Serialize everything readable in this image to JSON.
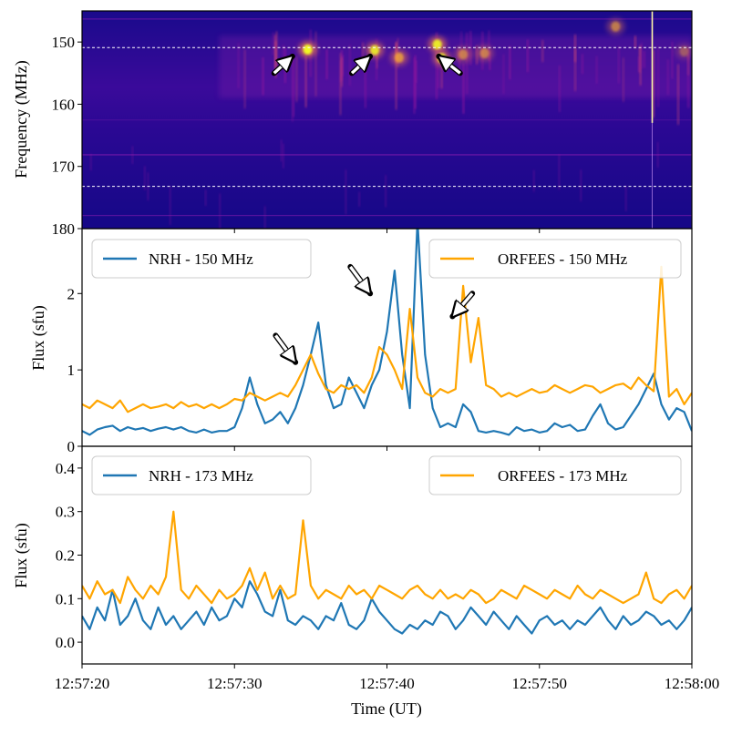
{
  "figure": {
    "xlabel": "Time (UT)",
    "x_tick_labels": [
      "12:57:20",
      "12:57:30",
      "12:57:40",
      "12:57:50",
      "12:58:00"
    ]
  },
  "chart_data": [
    {
      "type": "heatmap",
      "panel": "dynamic spectrum",
      "ylabel": "Frequency (MHz)",
      "y_tick_labels": [
        "150",
        "160",
        "170",
        "180"
      ],
      "x_range_s": [
        0,
        40
      ],
      "y_range": [
        145,
        180
      ],
      "y_inverted": true,
      "colormap": [
        "#0d0887",
        "#5c01a6",
        "#9c179e",
        "#cc4778",
        "#ed7953",
        "#fdb42f",
        "#f0f921"
      ],
      "guide_lines_mhz": [
        150.9,
        173.2
      ],
      "bright_features": [
        {
          "t": 14.8,
          "f": 151.2,
          "intensity": 1.0
        },
        {
          "t": 19.2,
          "f": 151.3,
          "intensity": 0.85
        },
        {
          "t": 20.8,
          "f": 152.5,
          "intensity": 0.7
        },
        {
          "t": 23.3,
          "f": 150.4,
          "intensity": 0.9
        },
        {
          "t": 23.6,
          "f": 152.6,
          "intensity": 0.85
        },
        {
          "t": 25.0,
          "f": 152.0,
          "intensity": 0.55
        },
        {
          "t": 26.4,
          "f": 151.8,
          "intensity": 0.55
        },
        {
          "t": 35.0,
          "f": 147.5,
          "intensity": 0.55
        },
        {
          "t": 39.5,
          "f": 151.5,
          "intensity": 0.35
        }
      ],
      "bright_line_t": 37.4,
      "arrows": [
        {
          "tip_t": 13.8,
          "tip_f": 152.3,
          "tail_t": 12.6,
          "tail_f": 155.0
        },
        {
          "tip_t": 18.9,
          "tip_f": 152.3,
          "tail_t": 17.7,
          "tail_f": 155.0
        },
        {
          "tip_t": 23.4,
          "tip_f": 152.3,
          "tail_t": 24.8,
          "tail_f": 155.0
        }
      ]
    },
    {
      "type": "line",
      "panel": "150 MHz light curves",
      "ylabel": "Flux (sfu)",
      "y_tick_labels": [
        "0",
        "1",
        "2"
      ],
      "ylim": [
        0,
        2.85
      ],
      "x_range_s": [
        0,
        40
      ],
      "series": [
        {
          "name": "NRH - 150 MHz",
          "color": "#1f77b4",
          "x": [
            0,
            0.5,
            1,
            1.5,
            2,
            2.5,
            3,
            3.5,
            4,
            4.5,
            5,
            5.5,
            6,
            6.5,
            7,
            7.5,
            8,
            8.5,
            9,
            9.5,
            10,
            10.5,
            11,
            11.5,
            12,
            12.5,
            13,
            13.5,
            14,
            14.5,
            15,
            15.5,
            16,
            16.5,
            17,
            17.5,
            18,
            18.5,
            19,
            19.5,
            20,
            20.5,
            21,
            21.5,
            22,
            22.5,
            23,
            23.5,
            24,
            24.5,
            25,
            25.5,
            26,
            26.5,
            27,
            27.5,
            28,
            28.5,
            29,
            29.5,
            30,
            30.5,
            31,
            31.5,
            32,
            32.5,
            33,
            33.5,
            34,
            34.5,
            35,
            35.5,
            36,
            36.5,
            37,
            37.5,
            38,
            38.5,
            39,
            39.5,
            40
          ],
          "values": [
            0.2,
            0.15,
            0.22,
            0.25,
            0.27,
            0.2,
            0.25,
            0.22,
            0.24,
            0.2,
            0.23,
            0.25,
            0.22,
            0.25,
            0.2,
            0.18,
            0.22,
            0.18,
            0.2,
            0.2,
            0.25,
            0.5,
            0.9,
            0.55,
            0.3,
            0.35,
            0.45,
            0.3,
            0.5,
            0.8,
            1.2,
            1.62,
            0.8,
            0.5,
            0.55,
            0.9,
            0.7,
            0.5,
            0.8,
            1.0,
            1.5,
            2.3,
            1.2,
            0.5,
            2.95,
            1.2,
            0.5,
            0.25,
            0.3,
            0.25,
            0.55,
            0.45,
            0.2,
            0.18,
            0.2,
            0.18,
            0.15,
            0.25,
            0.2,
            0.22,
            0.18,
            0.2,
            0.3,
            0.25,
            0.28,
            0.2,
            0.22,
            0.4,
            0.55,
            0.3,
            0.22,
            0.25,
            0.4,
            0.55,
            0.75,
            0.95,
            0.55,
            0.35,
            0.5,
            0.45,
            0.2
          ],
          "labelled_peaks": [
            {
              "x": 15.1,
              "value": 1.65
            },
            {
              "x": 19.8,
              "value": 2.32
            },
            {
              "x": 20.9,
              "value": 2.95
            }
          ]
        },
        {
          "name": "ORFEES - 150 MHz",
          "color": "#ffa500",
          "x": [
            0,
            0.5,
            1,
            1.5,
            2,
            2.5,
            3,
            3.5,
            4,
            4.5,
            5,
            5.5,
            6,
            6.5,
            7,
            7.5,
            8,
            8.5,
            9,
            9.5,
            10,
            10.5,
            11,
            11.5,
            12,
            12.5,
            13,
            13.5,
            14,
            14.5,
            15,
            15.5,
            16,
            16.5,
            17,
            17.5,
            18,
            18.5,
            19,
            19.5,
            20,
            20.5,
            21,
            21.5,
            22,
            22.5,
            23,
            23.5,
            24,
            24.5,
            25,
            25.5,
            26,
            26.5,
            27,
            27.5,
            28,
            28.5,
            29,
            29.5,
            30,
            30.5,
            31,
            31.5,
            32,
            32.5,
            33,
            33.5,
            34,
            34.5,
            35,
            35.5,
            36,
            36.5,
            37,
            37.5,
            38,
            38.5,
            39,
            39.5,
            40
          ],
          "values": [
            0.55,
            0.5,
            0.6,
            0.55,
            0.5,
            0.6,
            0.45,
            0.5,
            0.55,
            0.5,
            0.52,
            0.55,
            0.5,
            0.58,
            0.52,
            0.55,
            0.5,
            0.55,
            0.5,
            0.55,
            0.62,
            0.6,
            0.7,
            0.65,
            0.6,
            0.65,
            0.7,
            0.65,
            0.8,
            1.0,
            1.2,
            0.95,
            0.75,
            0.7,
            0.8,
            0.75,
            0.8,
            0.7,
            0.9,
            1.3,
            1.2,
            1.0,
            0.75,
            1.8,
            0.9,
            0.7,
            0.65,
            0.75,
            0.7,
            0.75,
            2.1,
            1.1,
            1.68,
            0.8,
            0.75,
            0.65,
            0.7,
            0.65,
            0.7,
            0.75,
            0.7,
            0.72,
            0.8,
            0.75,
            0.7,
            0.75,
            0.8,
            0.78,
            0.7,
            0.75,
            0.8,
            0.82,
            0.75,
            0.9,
            0.8,
            0.72,
            2.35,
            0.65,
            0.75,
            0.55,
            0.7
          ]
        }
      ],
      "legend_placement": "top, split left/right",
      "arrows": [
        {
          "tip_x": 14.0,
          "tip_value": 1.1,
          "tail_x": 12.7,
          "tail_value": 1.45
        },
        {
          "tip_x": 18.9,
          "tip_value": 2.0,
          "tail_x": 17.6,
          "tail_value": 2.35
        },
        {
          "tip_x": 24.3,
          "tip_value": 1.7,
          "tail_x": 25.6,
          "tail_value": 2.0
        }
      ]
    },
    {
      "type": "line",
      "panel": "173 MHz light curves",
      "ylabel": "Flux (sfu)",
      "y_tick_labels": [
        "0.0",
        "0.1",
        "0.2",
        "0.3",
        "0.4"
      ],
      "ylim": [
        -0.05,
        0.45
      ],
      "x_range_s": [
        0,
        40
      ],
      "series": [
        {
          "name": "NRH - 173 MHz",
          "color": "#1f77b4",
          "x": [
            0,
            0.5,
            1,
            1.5,
            2,
            2.5,
            3,
            3.5,
            4,
            4.5,
            5,
            5.5,
            6,
            6.5,
            7,
            7.5,
            8,
            8.5,
            9,
            9.5,
            10,
            10.5,
            11,
            11.5,
            12,
            12.5,
            13,
            13.5,
            14,
            14.5,
            15,
            15.5,
            16,
            16.5,
            17,
            17.5,
            18,
            18.5,
            19,
            19.5,
            20,
            20.5,
            21,
            21.5,
            22,
            22.5,
            23,
            23.5,
            24,
            24.5,
            25,
            25.5,
            26,
            26.5,
            27,
            27.5,
            28,
            28.5,
            29,
            29.5,
            30,
            30.5,
            31,
            31.5,
            32,
            32.5,
            33,
            33.5,
            34,
            34.5,
            35,
            35.5,
            36,
            36.5,
            37,
            37.5,
            38,
            38.5,
            39,
            39.5,
            40
          ],
          "values": [
            0.06,
            0.03,
            0.08,
            0.05,
            0.12,
            0.04,
            0.06,
            0.1,
            0.05,
            0.03,
            0.08,
            0.04,
            0.06,
            0.03,
            0.05,
            0.07,
            0.04,
            0.08,
            0.05,
            0.06,
            0.1,
            0.08,
            0.14,
            0.11,
            0.07,
            0.06,
            0.12,
            0.05,
            0.04,
            0.06,
            0.05,
            0.03,
            0.06,
            0.05,
            0.09,
            0.04,
            0.03,
            0.05,
            0.1,
            0.07,
            0.05,
            0.03,
            0.02,
            0.04,
            0.03,
            0.05,
            0.04,
            0.07,
            0.06,
            0.03,
            0.05,
            0.08,
            0.06,
            0.04,
            0.07,
            0.05,
            0.03,
            0.06,
            0.04,
            0.02,
            0.05,
            0.06,
            0.04,
            0.05,
            0.03,
            0.05,
            0.04,
            0.06,
            0.08,
            0.05,
            0.03,
            0.06,
            0.04,
            0.05,
            0.07,
            0.06,
            0.04,
            0.05,
            0.03,
            0.05,
            0.08
          ]
        },
        {
          "name": "ORFEES - 173 MHz",
          "color": "#ffa500",
          "x": [
            0,
            0.5,
            1,
            1.5,
            2,
            2.5,
            3,
            3.5,
            4,
            4.5,
            5,
            5.5,
            6,
            6.5,
            7,
            7.5,
            8,
            8.5,
            9,
            9.5,
            10,
            10.5,
            11,
            11.5,
            12,
            12.5,
            13,
            13.5,
            14,
            14.5,
            15,
            15.5,
            16,
            16.5,
            17,
            17.5,
            18,
            18.5,
            19,
            19.5,
            20,
            20.5,
            21,
            21.5,
            22,
            22.5,
            23,
            23.5,
            24,
            24.5,
            25,
            25.5,
            26,
            26.5,
            27,
            27.5,
            28,
            28.5,
            29,
            29.5,
            30,
            30.5,
            31,
            31.5,
            32,
            32.5,
            33,
            33.5,
            34,
            34.5,
            35,
            35.5,
            36,
            36.5,
            37,
            37.5,
            38,
            38.5,
            39,
            39.5,
            40
          ],
          "values": [
            0.13,
            0.1,
            0.14,
            0.11,
            0.12,
            0.09,
            0.15,
            0.12,
            0.1,
            0.13,
            0.11,
            0.15,
            0.3,
            0.12,
            0.1,
            0.13,
            0.11,
            0.09,
            0.12,
            0.1,
            0.11,
            0.13,
            0.17,
            0.12,
            0.16,
            0.1,
            0.13,
            0.1,
            0.11,
            0.28,
            0.13,
            0.1,
            0.12,
            0.11,
            0.1,
            0.13,
            0.11,
            0.12,
            0.1,
            0.13,
            0.12,
            0.11,
            0.1,
            0.12,
            0.13,
            0.11,
            0.1,
            0.12,
            0.1,
            0.11,
            0.1,
            0.12,
            0.11,
            0.09,
            0.1,
            0.12,
            0.11,
            0.1,
            0.13,
            0.12,
            0.11,
            0.1,
            0.12,
            0.11,
            0.1,
            0.13,
            0.11,
            0.1,
            0.12,
            0.11,
            0.1,
            0.09,
            0.1,
            0.11,
            0.16,
            0.1,
            0.09,
            0.11,
            0.12,
            0.1,
            0.13
          ]
        }
      ],
      "legend_placement": "top, split left/right"
    }
  ]
}
